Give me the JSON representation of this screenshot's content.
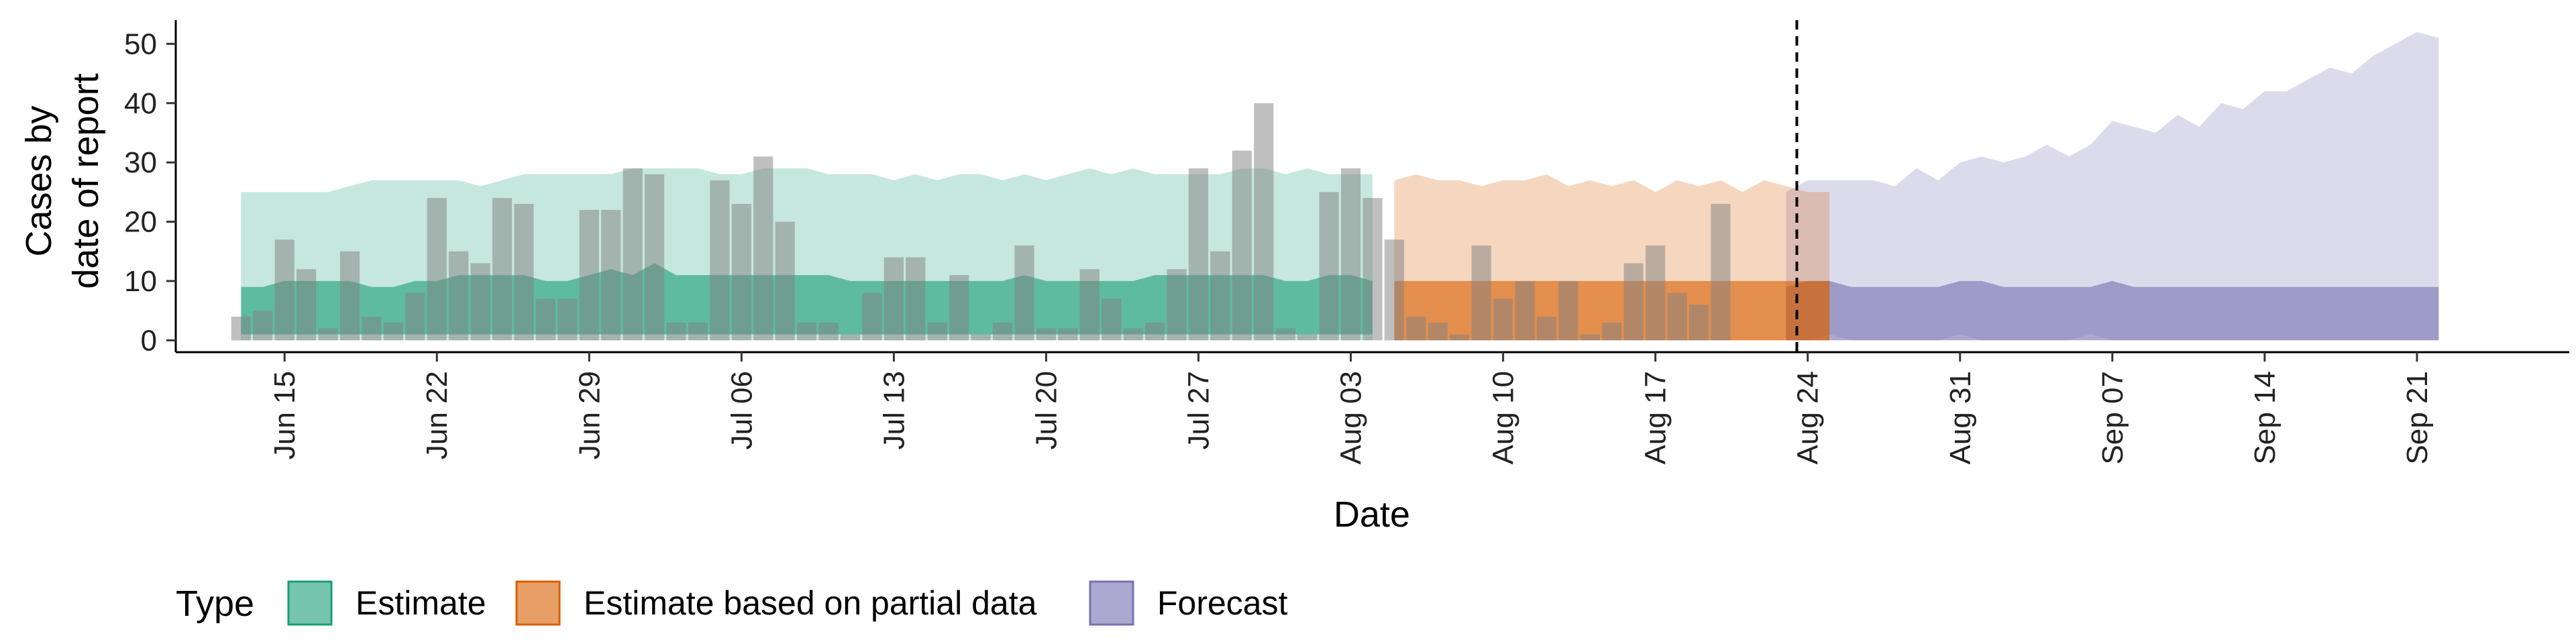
{
  "chart_data": {
    "type": "area",
    "ylabel_lines": [
      "Cases by",
      "date of report"
    ],
    "xlabel": "Date",
    "ylim": [
      -2,
      54
    ],
    "yticks": [
      0,
      10,
      20,
      30,
      40,
      50
    ],
    "x_start": "2020-06-10",
    "x_end": "2020-09-28",
    "xticks": [
      {
        "date": "2020-06-15",
        "label": "Jun 15"
      },
      {
        "date": "2020-06-22",
        "label": "Jun 22"
      },
      {
        "date": "2020-06-29",
        "label": "Jun 29"
      },
      {
        "date": "2020-07-06",
        "label": "Jul 06"
      },
      {
        "date": "2020-07-13",
        "label": "Jul 13"
      },
      {
        "date": "2020-07-20",
        "label": "Jul 20"
      },
      {
        "date": "2020-07-27",
        "label": "Jul 27"
      },
      {
        "date": "2020-08-03",
        "label": "Aug 03"
      },
      {
        "date": "2020-08-10",
        "label": "Aug 10"
      },
      {
        "date": "2020-08-17",
        "label": "Aug 17"
      },
      {
        "date": "2020-08-24",
        "label": "Aug 24"
      },
      {
        "date": "2020-08-31",
        "label": "Aug 31"
      },
      {
        "date": "2020-09-07",
        "label": "Sep 07"
      },
      {
        "date": "2020-09-14",
        "label": "Sep 14"
      },
      {
        "date": "2020-09-21",
        "label": "Sep 21"
      }
    ],
    "vline_date": "2020-08-23",
    "bars": {
      "start": "2020-06-13",
      "values": [
        4,
        5,
        17,
        12,
        2,
        15,
        4,
        3,
        8,
        24,
        15,
        13,
        24,
        23,
        7,
        7,
        22,
        22,
        29,
        28,
        3,
        3,
        27,
        23,
        31,
        20,
        3,
        3,
        1,
        8,
        14,
        14,
        3,
        11,
        1,
        3,
        16,
        2,
        2,
        12,
        7,
        2,
        3,
        12,
        29,
        15,
        32,
        40,
        2,
        1,
        25,
        29,
        24,
        17,
        4,
        3,
        1,
        16,
        7,
        10,
        4,
        10,
        1,
        3,
        13,
        16,
        8,
        6,
        23
      ]
    },
    "legend": {
      "title": "Type",
      "items": [
        "Estimate",
        "Estimate based on partial data",
        "Forecast"
      ]
    },
    "colors": {
      "estimate": "#1b9e77",
      "partial": "#d95f02",
      "forecast": "#7570b3",
      "bar": "#808080"
    },
    "series": [
      {
        "name": "Estimate",
        "start": "2020-06-13",
        "outer_upper": [
          25,
          25,
          25,
          25,
          25,
          26,
          27,
          27,
          27,
          27,
          27,
          26,
          27,
          28,
          28,
          28,
          28,
          28,
          29,
          29,
          29,
          29,
          28,
          28,
          29,
          29,
          29,
          28,
          28,
          28,
          27,
          28,
          27,
          28,
          28,
          27,
          28,
          27,
          28,
          29,
          28,
          29,
          28,
          28,
          28,
          28,
          29,
          29,
          28,
          29,
          28,
          28,
          28
        ],
        "outer_lower": [
          0,
          0,
          0,
          0,
          0,
          0,
          0,
          0,
          0,
          0,
          0,
          0,
          0,
          0,
          0,
          0,
          0,
          0,
          0,
          0,
          0,
          0,
          0,
          0,
          0,
          0,
          0,
          0,
          0,
          0,
          0,
          0,
          0,
          0,
          0,
          0,
          0,
          0,
          0,
          0,
          0,
          0,
          0,
          0,
          0,
          0,
          0,
          0,
          0,
          0,
          0,
          0,
          0
        ],
        "inner_upper": [
          9,
          9,
          10,
          10,
          10,
          10,
          9,
          9,
          10,
          10,
          11,
          11,
          11,
          11,
          10,
          10,
          11,
          12,
          11,
          13,
          11,
          11,
          11,
          11,
          11,
          11,
          11,
          11,
          10,
          10,
          10,
          10,
          10,
          10,
          10,
          10,
          11,
          10,
          10,
          10,
          10,
          10,
          11,
          11,
          11,
          11,
          11,
          11,
          10,
          10,
          11,
          11,
          10
        ],
        "inner_lower": [
          1,
          1,
          1,
          1,
          1,
          1,
          1,
          1,
          1,
          1,
          1,
          1,
          1,
          1,
          1,
          1,
          1,
          1,
          1,
          1,
          1,
          1,
          1,
          1,
          1,
          1,
          1,
          1,
          1,
          1,
          1,
          1,
          1,
          1,
          1,
          1,
          1,
          1,
          1,
          1,
          1,
          1,
          1,
          1,
          1,
          1,
          1,
          1,
          1,
          1,
          1,
          1,
          1
        ]
      },
      {
        "name": "Estimate based on partial data",
        "start": "2020-08-05",
        "outer_upper": [
          27,
          28,
          27,
          27,
          26,
          27,
          27,
          28,
          26,
          27,
          26,
          27,
          25,
          27,
          26,
          27,
          25,
          27,
          26,
          25,
          25
        ],
        "outer_lower": [
          0,
          0,
          0,
          0,
          0,
          0,
          0,
          0,
          0,
          0,
          0,
          0,
          0,
          0,
          0,
          0,
          0,
          0,
          0,
          0,
          0
        ],
        "inner_upper": [
          10,
          10,
          10,
          10,
          10,
          10,
          10,
          10,
          10,
          10,
          10,
          10,
          10,
          10,
          10,
          10,
          10,
          10,
          10,
          10,
          10
        ],
        "inner_lower": [
          0,
          0,
          0,
          0,
          0,
          0,
          0,
          0,
          0,
          0,
          0,
          0,
          0,
          0,
          0,
          0,
          0,
          0,
          0,
          0,
          0
        ]
      },
      {
        "name": "Forecast",
        "start": "2020-08-23",
        "outer_upper": [
          25,
          27,
          27,
          27,
          27,
          26,
          29,
          27,
          30,
          31,
          30,
          31,
          33,
          31,
          33,
          37,
          36,
          35,
          38,
          36,
          40,
          39,
          42,
          42,
          44,
          46,
          45,
          48,
          50,
          52,
          51
        ],
        "outer_lower": [
          0,
          0,
          1,
          0,
          0,
          0,
          0,
          0,
          1,
          0,
          0,
          0,
          0,
          0,
          1,
          0,
          0,
          0,
          0,
          0,
          0,
          0,
          0,
          0,
          0,
          0,
          0,
          0,
          0,
          0,
          0
        ],
        "inner_upper": [
          9,
          10,
          10,
          9,
          9,
          9,
          9,
          9,
          10,
          10,
          9,
          9,
          9,
          9,
          9,
          10,
          9,
          9,
          9,
          9,
          9,
          9,
          9,
          9,
          9,
          9,
          9,
          9,
          9,
          9,
          9
        ],
        "inner_lower": [
          0,
          0,
          0,
          0,
          0,
          0,
          0,
          0,
          0,
          0,
          0,
          0,
          0,
          0,
          0,
          0,
          0,
          0,
          0,
          0,
          0,
          0,
          0,
          0,
          0,
          0,
          0,
          0,
          0,
          0,
          0
        ]
      }
    ]
  }
}
